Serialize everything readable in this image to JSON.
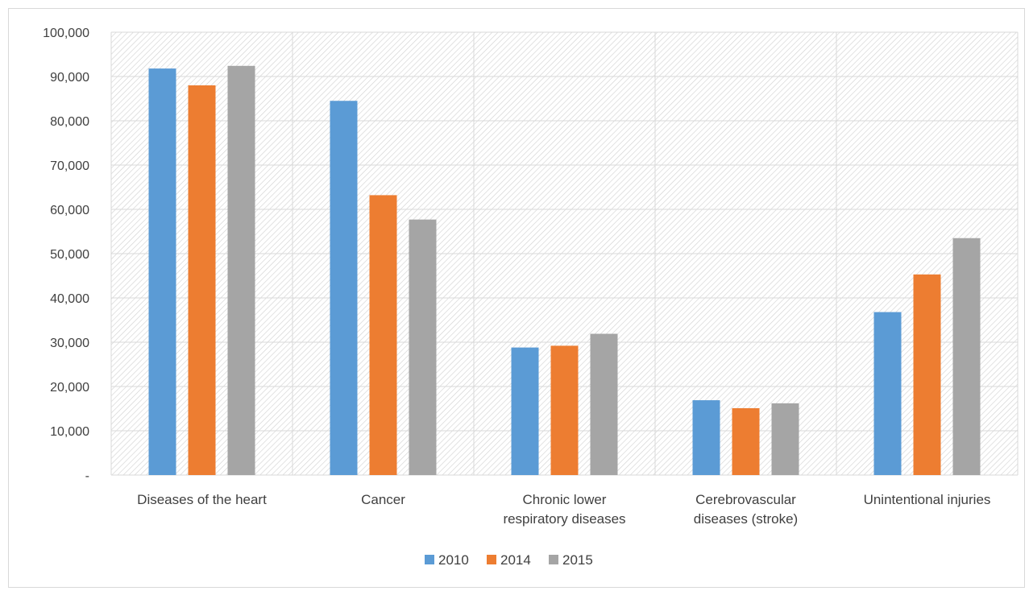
{
  "chart_data": {
    "type": "bar",
    "title": "",
    "xlabel": "",
    "ylabel": "",
    "categories": [
      [
        "Diseases of the heart"
      ],
      [
        "Cancer"
      ],
      [
        "Chronic lower",
        "respiratory diseases"
      ],
      [
        "Cerebrovascular",
        "diseases (stroke)"
      ],
      [
        "Unintentional injuries"
      ]
    ],
    "series": [
      {
        "name": "2010",
        "color": "#5b9bd5",
        "values": [
          91800,
          84500,
          28800,
          16900,
          36800
        ]
      },
      {
        "name": "2014",
        "color": "#ed7d31",
        "values": [
          88000,
          63200,
          29200,
          15100,
          45300
        ]
      },
      {
        "name": "2015",
        "color": "#a5a5a5",
        "values": [
          92400,
          57700,
          31900,
          16200,
          53500
        ]
      }
    ],
    "ylim": [
      0,
      100000
    ],
    "yticks": [
      {
        "value": 0,
        "label": "-"
      },
      {
        "value": 10000,
        "label": "10,000"
      },
      {
        "value": 20000,
        "label": "20,000"
      },
      {
        "value": 30000,
        "label": "30,000"
      },
      {
        "value": 40000,
        "label": "40,000"
      },
      {
        "value": 50000,
        "label": "50,000"
      },
      {
        "value": 60000,
        "label": "60,000"
      },
      {
        "value": 70000,
        "label": "70,000"
      },
      {
        "value": 80000,
        "label": "80,000"
      },
      {
        "value": 90000,
        "label": "90,000"
      },
      {
        "value": 100000,
        "label": "100,000"
      }
    ],
    "grid": true,
    "legend_position": "bottom"
  }
}
